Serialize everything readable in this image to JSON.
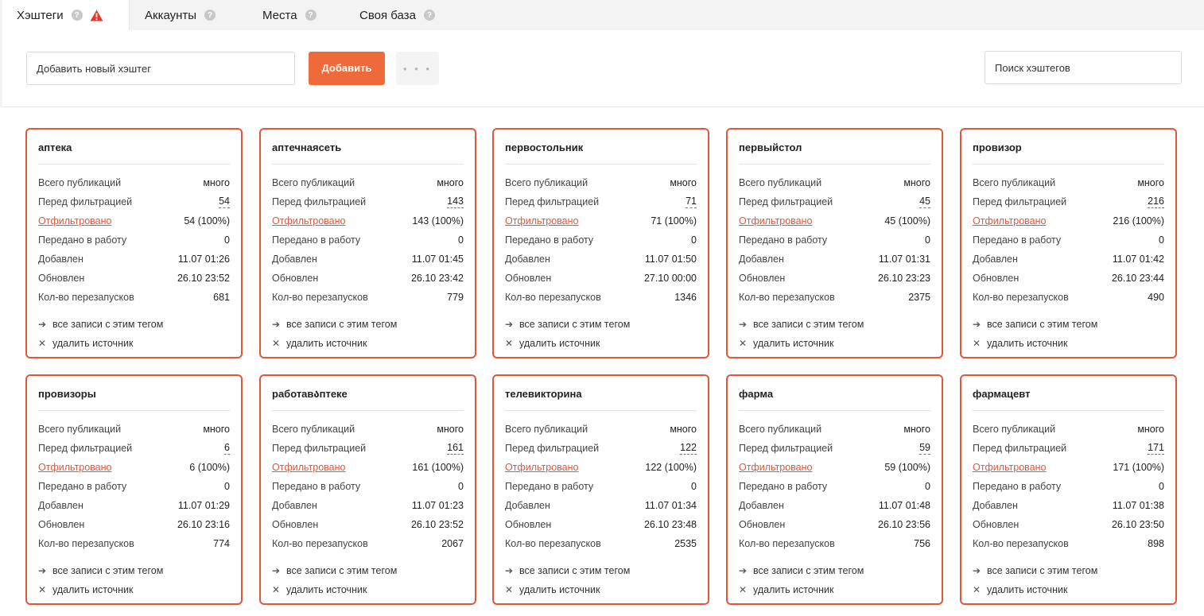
{
  "tabs": [
    {
      "label": "Хэштеги",
      "active": true,
      "warning": true
    },
    {
      "label": "Аккаунты",
      "active": false
    },
    {
      "label": "Места",
      "active": false
    },
    {
      "label": "Своя база",
      "active": false
    }
  ],
  "help_glyph": "?",
  "toolbar": {
    "new_hashtag_placeholder": "Добавить новый хэштег",
    "add_label": "Добавить",
    "more_label": "• • •",
    "search_placeholder": "Поиск хэштегов"
  },
  "labels": {
    "total": "Всего публикаций",
    "before": "Перед фильтрацией",
    "filtered": "Отфильтровано",
    "sent": "Передано в работу",
    "added": "Добавлен",
    "updated": "Обновлен",
    "restarts": "Кол-во перезапусков",
    "view_all": "все записи с этим тегом",
    "remove": "удалить источник",
    "view_all_icon": "arrow-right-icon",
    "remove_icon": "close-icon"
  },
  "cards": [
    {
      "tag": "аптека",
      "total": "много",
      "before": "54",
      "filtered": "54 (100%)",
      "sent": "0",
      "added": "11.07 01:26",
      "updated": "26.10 23:52",
      "restarts": "681"
    },
    {
      "tag": "аптечнаясеть",
      "total": "много",
      "before": "143",
      "filtered": "143 (100%)",
      "sent": "0",
      "added": "11.07 01:45",
      "updated": "26.10 23:42",
      "restarts": "779"
    },
    {
      "tag": "первостольник",
      "total": "много",
      "before": "71",
      "filtered": "71 (100%)",
      "sent": "0",
      "added": "11.07 01:50",
      "updated": "27.10 00:00",
      "restarts": "1346"
    },
    {
      "tag": "первыйстол",
      "total": "много",
      "before": "45",
      "filtered": "45 (100%)",
      "sent": "0",
      "added": "11.07 01:31",
      "updated": "26.10 23:23",
      "restarts": "2375"
    },
    {
      "tag": "провизор",
      "total": "много",
      "before": "216",
      "filtered": "216 (100%)",
      "sent": "0",
      "added": "11.07 01:42",
      "updated": "26.10 23:44",
      "restarts": "490"
    },
    {
      "tag": "провизоры",
      "total": "много",
      "before": "6",
      "filtered": "6 (100%)",
      "sent": "0",
      "added": "11.07 01:29",
      "updated": "26.10 23:16",
      "restarts": "774"
    },
    {
      "tag": "работавაптеке",
      "total": "много",
      "before": "161",
      "filtered": "161 (100%)",
      "sent": "0",
      "added": "11.07 01:23",
      "updated": "26.10 23:52",
      "restarts": "2067"
    },
    {
      "tag": "телевикторина",
      "total": "много",
      "before": "122",
      "filtered": "122 (100%)",
      "sent": "0",
      "added": "11.07 01:34",
      "updated": "26.10 23:48",
      "restarts": "2535"
    },
    {
      "tag": "фарма",
      "total": "много",
      "before": "59",
      "filtered": "59 (100%)",
      "sent": "0",
      "added": "11.07 01:48",
      "updated": "26.10 23:56",
      "restarts": "756"
    },
    {
      "tag": "фармацевт",
      "total": "много",
      "before": "171",
      "filtered": "171 (100%)",
      "sent": "0",
      "added": "11.07 01:38",
      "updated": "26.10 23:50",
      "restarts": "898"
    }
  ],
  "colors": {
    "accent": "#ee6a3b",
    "card_border": "#e0573c",
    "warning": "#e23b2e"
  }
}
